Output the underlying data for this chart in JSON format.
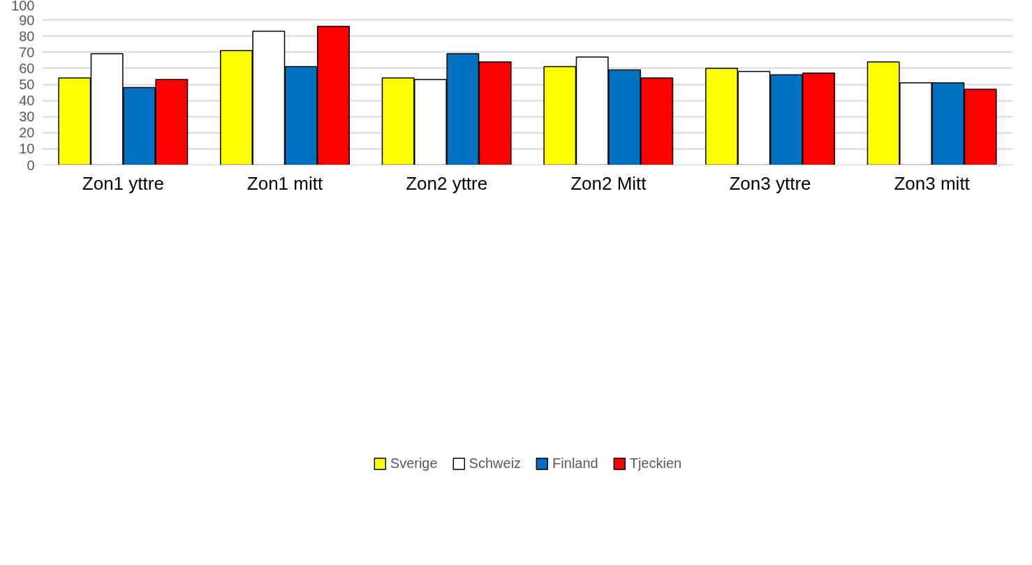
{
  "chart_data": {
    "type": "bar",
    "categories": [
      "Zon1 yttre",
      "Zon1 mitt",
      "Zon2 yttre",
      "Zon2 Mitt",
      "Zon3 yttre",
      "Zon3 mitt"
    ],
    "series": [
      {
        "name": "Sverige",
        "color": "#ffff00",
        "values": [
          54,
          71,
          54,
          61,
          60,
          64
        ]
      },
      {
        "name": "Schweiz",
        "color": "#ffffff",
        "values": [
          69,
          83,
          53,
          67,
          58,
          51
        ]
      },
      {
        "name": "Finland",
        "color": "#0070c0",
        "values": [
          48,
          61,
          69,
          59,
          56,
          51
        ]
      },
      {
        "name": "Tjeckien",
        "color": "#ff0000",
        "values": [
          53,
          86,
          64,
          54,
          57,
          47
        ]
      }
    ],
    "ylim": [
      0,
      100
    ],
    "yticks": [
      0,
      10,
      20,
      30,
      40,
      50,
      60,
      70,
      80,
      90,
      100
    ],
    "grid": "y",
    "legend": "bottom"
  }
}
